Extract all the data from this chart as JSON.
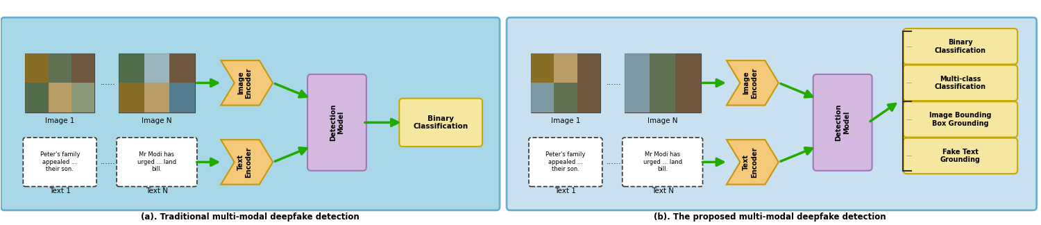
{
  "fig_width": 15.0,
  "fig_height": 3.24,
  "dpi": 100,
  "bg_color": "#ffffff",
  "panel_a_bg": "#a8d8e8",
  "panel_b_bg": "#c8e0f0",
  "encoder_color": "#f5c97a",
  "encoder_edge": "#c8960a",
  "detection_color": "#d4b8e0",
  "detection_edge": "#9a7ab8",
  "binary_cls_color": "#f5e6a0",
  "binary_cls_edge": "#c8a800",
  "output_box_color": "#f5e6a0",
  "output_box_edge": "#c8a800",
  "text_box_bg": "#ffffff",
  "text_box_edge": "#333333",
  "image_box_edge": "#333333",
  "arrow_color": "#22aa00",
  "title_a": "(a). Traditional multi-modal deepfake detection",
  "title_b": "(b). The proposed multi-modal deepfake detection",
  "panel_a_labels": {
    "img1": "Image 1",
    "imgN": "Image N",
    "text1": "Text 1",
    "textN": "Text N",
    "img_encoder": "Image\nEncoder",
    "text_encoder": "Text\nEncoder",
    "detection": "Detection\nModel",
    "binary": "Binary\nClassification",
    "dots_top": "......",
    "dots_bot": "......",
    "txt1_content": "Peter's family\nappealed ...\ntheir son.",
    "txtN_content": "Mr Modi has\nurged ... land\nbill."
  },
  "panel_b_labels": {
    "img1": "Image 1",
    "imgN": "Image N",
    "text1": "Text 1",
    "textN": "Text N",
    "img_encoder": "Image\nEncoder",
    "text_encoder": "Text\nEncoder",
    "detection": "Detection\nModel",
    "out1": "Binary\nClassification",
    "out2": "Multi-class\nClassification",
    "out3": "Image Bounding\nBox Grounding",
    "out4": "Fake Text\nGrounding",
    "dots_top": "......",
    "dots_bot": "......",
    "txt1_content": "Peter's family\nappealed ...\ntheir son.",
    "txtN_content": "Mr Modi has\nurged ... land\nbill."
  }
}
